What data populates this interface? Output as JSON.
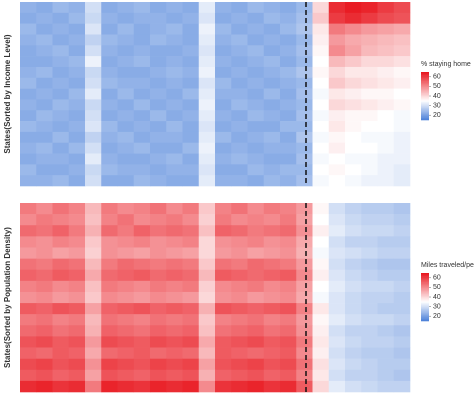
{
  "chart_data": [
    {
      "type": "heatmap",
      "ylabel": "States(Sorted by Income Level)",
      "legend_title": "% staying home",
      "clim": [
        15,
        65
      ],
      "cmid": 35,
      "cticks": [
        20,
        30,
        40,
        50,
        60
      ],
      "colors": {
        "low": "#4a7fd8",
        "mid": "#ffffff",
        "high": "#e8141c"
      },
      "values": [
        [
          23,
          22,
          24,
          23,
          30,
          22,
          23,
          24,
          22,
          23,
          22,
          32,
          23,
          22,
          24,
          23,
          22,
          24,
          40,
          62,
          64,
          63,
          60,
          58
        ],
        [
          22,
          23,
          22,
          24,
          29,
          23,
          22,
          23,
          23,
          22,
          23,
          31,
          22,
          23,
          22,
          24,
          23,
          25,
          42,
          60,
          62,
          60,
          58,
          57
        ],
        [
          24,
          22,
          23,
          22,
          31,
          22,
          24,
          22,
          23,
          24,
          22,
          33,
          24,
          22,
          23,
          22,
          24,
          26,
          38,
          52,
          50,
          48,
          47,
          46
        ],
        [
          23,
          24,
          22,
          23,
          28,
          24,
          23,
          22,
          24,
          23,
          22,
          32,
          23,
          24,
          22,
          23,
          22,
          24,
          37,
          48,
          46,
          45,
          44,
          43
        ],
        [
          22,
          23,
          24,
          22,
          30,
          23,
          22,
          23,
          22,
          22,
          23,
          31,
          22,
          23,
          24,
          22,
          23,
          25,
          36,
          50,
          47,
          44,
          43,
          42
        ],
        [
          22,
          22,
          23,
          24,
          33,
          22,
          23,
          24,
          22,
          23,
          22,
          32,
          23,
          22,
          23,
          24,
          22,
          24,
          35,
          44,
          42,
          40,
          40,
          39
        ],
        [
          23,
          24,
          22,
          23,
          29,
          23,
          22,
          22,
          23,
          24,
          23,
          33,
          22,
          23,
          22,
          23,
          24,
          26,
          36,
          40,
          38,
          38,
          37,
          36
        ],
        [
          24,
          22,
          23,
          22,
          30,
          24,
          23,
          23,
          22,
          23,
          22,
          31,
          24,
          22,
          23,
          22,
          23,
          24,
          35,
          42,
          40,
          39,
          38,
          37
        ],
        [
          22,
          23,
          22,
          24,
          32,
          22,
          24,
          22,
          23,
          22,
          24,
          32,
          23,
          23,
          22,
          24,
          22,
          25,
          34,
          38,
          37,
          36,
          36,
          35
        ],
        [
          23,
          22,
          24,
          23,
          29,
          23,
          22,
          24,
          22,
          23,
          22,
          33,
          22,
          24,
          23,
          22,
          23,
          24,
          35,
          40,
          39,
          38,
          37,
          36
        ],
        [
          22,
          24,
          23,
          22,
          30,
          22,
          23,
          22,
          24,
          22,
          23,
          32,
          23,
          22,
          24,
          23,
          22,
          25,
          34,
          37,
          36,
          36,
          35,
          34
        ],
        [
          24,
          23,
          22,
          23,
          31,
          24,
          22,
          23,
          22,
          24,
          22,
          31,
          22,
          23,
          22,
          22,
          24,
          24,
          35,
          38,
          36,
          35,
          35,
          34
        ],
        [
          22,
          22,
          24,
          22,
          28,
          23,
          24,
          22,
          23,
          23,
          22,
          32,
          24,
          22,
          23,
          24,
          22,
          26,
          34,
          36,
          35,
          34,
          34,
          33
        ],
        [
          23,
          24,
          22,
          24,
          30,
          22,
          23,
          24,
          22,
          22,
          24,
          33,
          22,
          23,
          22,
          23,
          23,
          24,
          35,
          37,
          35,
          35,
          34,
          33
        ],
        [
          22,
          23,
          23,
          22,
          32,
          23,
          22,
          22,
          23,
          24,
          22,
          32,
          23,
          24,
          23,
          22,
          22,
          25,
          34,
          35,
          34,
          34,
          33,
          33
        ],
        [
          24,
          22,
          22,
          23,
          29,
          24,
          23,
          23,
          22,
          23,
          23,
          31,
          22,
          22,
          24,
          23,
          24,
          24,
          35,
          36,
          35,
          34,
          33,
          32
        ],
        [
          23,
          23,
          24,
          22,
          30,
          22,
          22,
          24,
          23,
          22,
          22,
          32,
          23,
          23,
          22,
          24,
          23,
          25,
          34,
          35,
          34,
          33,
          33,
          32
        ]
      ]
    },
    {
      "type": "heatmap",
      "ylabel": "States(Sorted by Population Density)",
      "legend_title": "Miles traveled/person",
      "clim": [
        15,
        65
      ],
      "cmid": 35,
      "cticks": [
        20,
        30,
        40,
        50,
        60
      ],
      "colors": {
        "low": "#4a7fd8",
        "mid": "#ffffff",
        "high": "#e8141c"
      },
      "values": [
        [
          52,
          50,
          53,
          51,
          44,
          52,
          50,
          51,
          53,
          50,
          52,
          42,
          51,
          53,
          50,
          52,
          51,
          48,
          36,
          30,
          28,
          27,
          27,
          26
        ],
        [
          50,
          52,
          51,
          50,
          43,
          51,
          53,
          50,
          51,
          52,
          50,
          41,
          52,
          50,
          51,
          50,
          52,
          47,
          35,
          31,
          29,
          28,
          28,
          27
        ],
        [
          54,
          53,
          55,
          52,
          45,
          54,
          52,
          55,
          53,
          54,
          53,
          43,
          55,
          54,
          52,
          53,
          54,
          49,
          37,
          32,
          30,
          29,
          29,
          28
        ],
        [
          50,
          49,
          51,
          50,
          42,
          49,
          50,
          51,
          49,
          50,
          51,
          40,
          49,
          50,
          51,
          49,
          50,
          46,
          35,
          30,
          28,
          28,
          27,
          27
        ],
        [
          48,
          49,
          47,
          48,
          41,
          49,
          48,
          47,
          49,
          48,
          47,
          40,
          48,
          49,
          47,
          48,
          49,
          45,
          34,
          31,
          30,
          29,
          28,
          28
        ],
        [
          53,
          52,
          54,
          53,
          44,
          52,
          54,
          53,
          52,
          53,
          52,
          42,
          53,
          52,
          54,
          53,
          52,
          48,
          36,
          30,
          28,
          27,
          26,
          26
        ],
        [
          55,
          54,
          56,
          55,
          46,
          54,
          55,
          56,
          54,
          55,
          54,
          44,
          56,
          55,
          54,
          55,
          56,
          50,
          37,
          31,
          29,
          28,
          27,
          27
        ],
        [
          51,
          52,
          50,
          51,
          43,
          52,
          51,
          50,
          52,
          51,
          52,
          41,
          50,
          51,
          52,
          50,
          51,
          47,
          35,
          32,
          30,
          29,
          29,
          28
        ],
        [
          49,
          50,
          48,
          49,
          42,
          50,
          49,
          48,
          50,
          49,
          48,
          40,
          49,
          50,
          48,
          49,
          50,
          46,
          34,
          31,
          29,
          28,
          28,
          27
        ],
        [
          56,
          55,
          57,
          56,
          47,
          55,
          56,
          57,
          55,
          56,
          55,
          45,
          57,
          56,
          55,
          56,
          57,
          51,
          38,
          31,
          29,
          28,
          27,
          27
        ],
        [
          52,
          53,
          51,
          52,
          44,
          53,
          52,
          51,
          53,
          52,
          53,
          42,
          51,
          52,
          53,
          51,
          52,
          48,
          36,
          32,
          30,
          29,
          29,
          28
        ],
        [
          54,
          55,
          53,
          54,
          45,
          55,
          54,
          53,
          55,
          54,
          55,
          43,
          53,
          54,
          55,
          53,
          54,
          49,
          37,
          30,
          28,
          28,
          27,
          26
        ],
        [
          57,
          58,
          56,
          57,
          48,
          58,
          57,
          56,
          58,
          57,
          58,
          46,
          56,
          57,
          58,
          56,
          57,
          52,
          38,
          31,
          29,
          28,
          28,
          27
        ],
        [
          55,
          54,
          56,
          55,
          46,
          54,
          55,
          56,
          54,
          55,
          54,
          44,
          56,
          55,
          54,
          55,
          56,
          50,
          37,
          30,
          28,
          27,
          27,
          26
        ],
        [
          58,
          59,
          57,
          58,
          49,
          59,
          58,
          57,
          59,
          58,
          59,
          47,
          57,
          58,
          59,
          57,
          58,
          53,
          39,
          31,
          29,
          28,
          27,
          27
        ],
        [
          56,
          57,
          55,
          56,
          47,
          57,
          56,
          55,
          57,
          56,
          57,
          45,
          55,
          56,
          57,
          55,
          56,
          51,
          38,
          30,
          28,
          28,
          27,
          26
        ],
        [
          62,
          63,
          61,
          62,
          52,
          63,
          62,
          61,
          63,
          62,
          63,
          50,
          61,
          62,
          63,
          61,
          62,
          56,
          40,
          32,
          30,
          29,
          28,
          28
        ]
      ]
    }
  ]
}
